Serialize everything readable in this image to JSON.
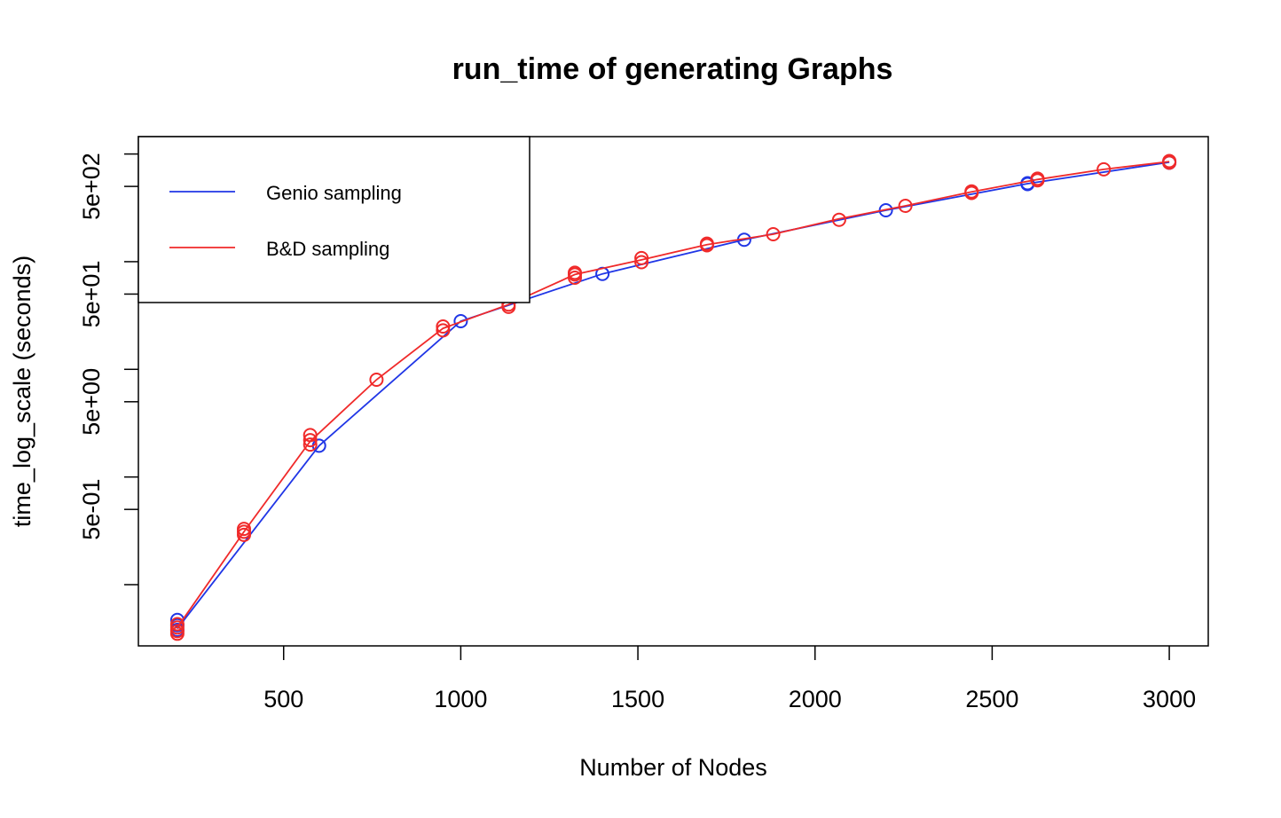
{
  "chart_data": {
    "type": "line",
    "title": "run_time of generating Graphs",
    "xlabel": "Number of Nodes",
    "ylabel": "time_log_scale (seconds)",
    "y_scale": "log",
    "xlim": [
      90,
      3110
    ],
    "ylim": [
      0.027,
      1450
    ],
    "x_ticks": [
      {
        "value": 500,
        "label": "500"
      },
      {
        "value": 1000,
        "label": "1000"
      },
      {
        "value": 1500,
        "label": "1500"
      },
      {
        "value": 2000,
        "label": "2000"
      },
      {
        "value": 2500,
        "label": "2500"
      },
      {
        "value": 3000,
        "label": "3000"
      }
    ],
    "y_ticks": [
      {
        "value": 0.1,
        "label": ""
      },
      {
        "value": 0.5,
        "label": "5e-01"
      },
      {
        "value": 1,
        "label": ""
      },
      {
        "value": 5,
        "label": "5e+00"
      },
      {
        "value": 10,
        "label": ""
      },
      {
        "value": 50,
        "label": "5e+01"
      },
      {
        "value": 100,
        "label": ""
      },
      {
        "value": 500,
        "label": "5e+02"
      },
      {
        "value": 1000,
        "label": ""
      }
    ],
    "legend_position": "top-left",
    "series": [
      {
        "name": "Genio sampling",
        "color": "#2036e6",
        "points": [
          {
            "x": 200,
            "y": 0.038
          },
          {
            "x": 200,
            "y": 0.047
          },
          {
            "x": 200,
            "y": 0.042
          },
          {
            "x": 600,
            "y": 1.95
          },
          {
            "x": 1000,
            "y": 28
          },
          {
            "x": 1400,
            "y": 77
          },
          {
            "x": 1800,
            "y": 160
          },
          {
            "x": 2200,
            "y": 300
          },
          {
            "x": 2600,
            "y": 525
          },
          {
            "x": 2600,
            "y": 535
          },
          {
            "x": 3000,
            "y": 830
          },
          {
            "x": 3000,
            "y": 850
          }
        ],
        "line": [
          [
            200,
            0.039
          ],
          [
            600,
            1.95
          ],
          [
            1000,
            28
          ],
          [
            1400,
            77
          ],
          [
            1800,
            160
          ],
          [
            2200,
            300
          ],
          [
            2600,
            530
          ],
          [
            3000,
            840
          ]
        ]
      },
      {
        "name": "B&D sampling",
        "color": "#f02a2a",
        "points": [
          {
            "x": 200,
            "y": 0.035
          },
          {
            "x": 200,
            "y": 0.037
          },
          {
            "x": 200,
            "y": 0.04
          },
          {
            "x": 200,
            "y": 0.043
          },
          {
            "x": 388,
            "y": 0.29
          },
          {
            "x": 388,
            "y": 0.31
          },
          {
            "x": 388,
            "y": 0.33
          },
          {
            "x": 575,
            "y": 2.0
          },
          {
            "x": 575,
            "y": 2.2
          },
          {
            "x": 575,
            "y": 2.45
          },
          {
            "x": 762,
            "y": 8.0
          },
          {
            "x": 950,
            "y": 23
          },
          {
            "x": 950,
            "y": 25
          },
          {
            "x": 1135,
            "y": 38
          },
          {
            "x": 1135,
            "y": 40
          },
          {
            "x": 1322,
            "y": 71
          },
          {
            "x": 1322,
            "y": 76
          },
          {
            "x": 1322,
            "y": 79
          },
          {
            "x": 1510,
            "y": 99
          },
          {
            "x": 1510,
            "y": 108
          },
          {
            "x": 1695,
            "y": 142
          },
          {
            "x": 1695,
            "y": 147
          },
          {
            "x": 1882,
            "y": 180
          },
          {
            "x": 2068,
            "y": 245
          },
          {
            "x": 2255,
            "y": 330
          },
          {
            "x": 2442,
            "y": 435
          },
          {
            "x": 2442,
            "y": 450
          },
          {
            "x": 2628,
            "y": 570
          },
          {
            "x": 2628,
            "y": 590
          },
          {
            "x": 2815,
            "y": 720
          },
          {
            "x": 3000,
            "y": 830
          },
          {
            "x": 3000,
            "y": 860
          }
        ],
        "line": [
          [
            200,
            0.04
          ],
          [
            388,
            0.31
          ],
          [
            575,
            2.15
          ],
          [
            762,
            8.0
          ],
          [
            950,
            24
          ],
          [
            1135,
            40
          ],
          [
            1322,
            76
          ],
          [
            1510,
            104
          ],
          [
            1695,
            144
          ],
          [
            1882,
            180
          ],
          [
            2068,
            250
          ],
          [
            2255,
            330
          ],
          [
            2442,
            445
          ],
          [
            2628,
            580
          ],
          [
            2815,
            720
          ],
          [
            3000,
            850
          ]
        ]
      }
    ]
  }
}
